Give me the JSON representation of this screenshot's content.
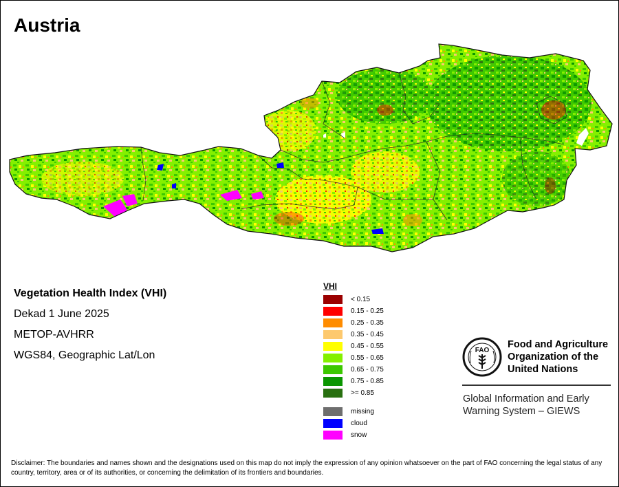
{
  "title": "Austria",
  "info": {
    "index_name": "Vegetation Health Index (VHI)",
    "period": "Dekad 1 June 2025",
    "sensor": "METOP-AVHRR",
    "projection": "WGS84, Geographic Lat/Lon"
  },
  "legend": {
    "title": "VHI",
    "classes": [
      {
        "label": "< 0.15",
        "color": "#9b0000"
      },
      {
        "label": "0.15 - 0.25",
        "color": "#ff0000"
      },
      {
        "label": "0.25 - 0.35",
        "color": "#ff8c00"
      },
      {
        "label": "0.35 - 0.45",
        "color": "#fdc96e"
      },
      {
        "label": "0.45 - 0.55",
        "color": "#ffff00"
      },
      {
        "label": "0.55 - 0.65",
        "color": "#84f000"
      },
      {
        "label": "0.65 - 0.75",
        "color": "#3cc800"
      },
      {
        "label": "0.75 - 0.85",
        "color": "#0a9600"
      },
      {
        "label": ">= 0.85",
        "color": "#287010"
      }
    ],
    "special": [
      {
        "label": "missing",
        "color": "#6e6e6e"
      },
      {
        "label": "cloud",
        "color": "#0000ff"
      },
      {
        "label": "snow",
        "color": "#ff00ff"
      }
    ]
  },
  "organization": {
    "name": "Food and Agriculture\nOrganization of the\nUnited Nations",
    "logo_text": "FAO",
    "logo_motto": "FIAT PANIS",
    "system": "Global Information and Early\nWarning System – GIEWS"
  },
  "disclaimer": "Disclaimer: The boundaries and names shown and the designations used on this map do not imply the expression of any opinion whatsoever on the part of FAO concerning the legal status of any country, territory, area or of its authorities, or concerning the delimitation of its frontiers and boundaries."
}
